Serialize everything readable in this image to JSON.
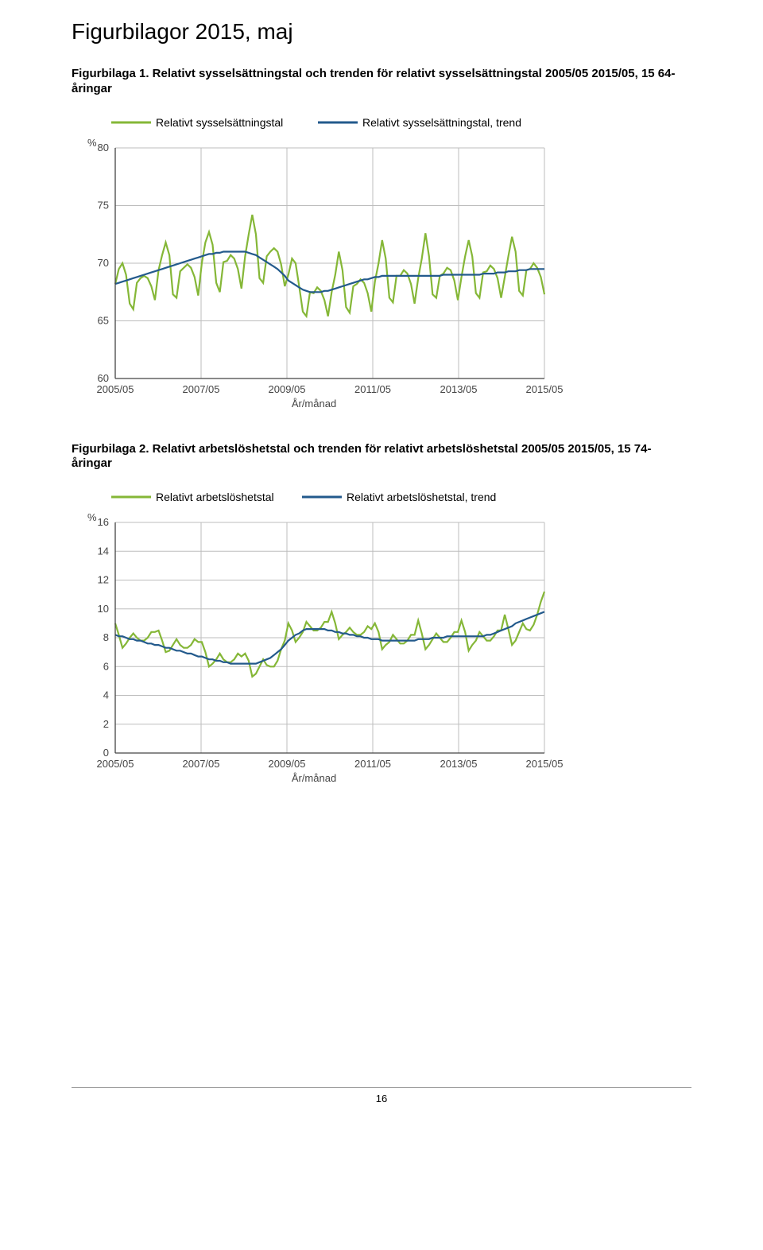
{
  "page_title": "Figurbilagor 2015, maj",
  "page_number": "16",
  "colors": {
    "green": "#85b737",
    "blue": "#235a8c",
    "grid": "#bdbdbd",
    "axis": "#444444"
  },
  "chart1": {
    "caption": "Figurbilaga 1. Relativt sysselsättningstal och trenden för relativt sysselsättningstal 2005/05 2015/05, 15 64-åringar",
    "legend_a": "Relativt sysselsättningstal",
    "legend_b": "Relativt sysselsättningstal, trend",
    "y_label": "%",
    "x_label": "År/månad",
    "y_ticks": [
      60,
      65,
      70,
      75,
      80
    ],
    "x_ticks": [
      "2005/05",
      "2007/05",
      "2009/05",
      "2011/05",
      "2013/05",
      "2015/05"
    ],
    "ylim": [
      60,
      80
    ],
    "xlim": [
      0,
      120
    ],
    "series_a": {
      "color_key": "green",
      "y": [
        68.2,
        69.5,
        70.0,
        69.0,
        66.5,
        66.0,
        68.3,
        68.7,
        68.9,
        68.7,
        68.0,
        66.8,
        69.4,
        70.7,
        71.8,
        70.7,
        67.3,
        67.0,
        69.3,
        69.6,
        69.9,
        69.6,
        68.8,
        67.2,
        70.0,
        71.8,
        72.7,
        71.6,
        68.3,
        67.5,
        70.1,
        70.2,
        70.7,
        70.4,
        69.5,
        67.8,
        70.6,
        72.5,
        74.2,
        72.5,
        68.7,
        68.3,
        70.6,
        71.0,
        71.3,
        71.0,
        69.9,
        68.0,
        69.0,
        70.4,
        70.0,
        68.0,
        65.8,
        65.4,
        67.5,
        67.4,
        67.9,
        67.6,
        66.8,
        65.4,
        67.5,
        69.0,
        71.0,
        69.4,
        66.2,
        65.7,
        68.0,
        68.2,
        68.6,
        68.3,
        67.4,
        65.8,
        68.4,
        70.0,
        72.0,
        70.4,
        67.0,
        66.6,
        68.9,
        68.9,
        69.4,
        69.1,
        68.2,
        66.5,
        68.7,
        70.4,
        72.6,
        70.6,
        67.3,
        67.0,
        68.9,
        69.1,
        69.6,
        69.4,
        68.5,
        66.8,
        68.8,
        70.6,
        72.0,
        70.6,
        67.4,
        67.0,
        69.2,
        69.3,
        69.8,
        69.5,
        68.7,
        67.0,
        68.8,
        70.6,
        72.3,
        71.0,
        67.6,
        67.2,
        69.4,
        69.5,
        70.0,
        69.6,
        68.8,
        67.3
      ]
    },
    "series_b": {
      "color_key": "blue",
      "y": [
        68.2,
        68.3,
        68.4,
        68.5,
        68.6,
        68.7,
        68.8,
        68.9,
        69.0,
        69.1,
        69.2,
        69.3,
        69.4,
        69.5,
        69.6,
        69.7,
        69.8,
        69.9,
        70.0,
        70.1,
        70.2,
        70.3,
        70.4,
        70.5,
        70.6,
        70.7,
        70.8,
        70.8,
        70.9,
        70.9,
        71.0,
        71.0,
        71.0,
        71.0,
        71.0,
        71.0,
        71.0,
        70.9,
        70.8,
        70.7,
        70.5,
        70.3,
        70.1,
        69.9,
        69.7,
        69.5,
        69.2,
        68.9,
        68.5,
        68.3,
        68.1,
        67.9,
        67.7,
        67.6,
        67.5,
        67.5,
        67.5,
        67.5,
        67.6,
        67.6,
        67.7,
        67.8,
        67.9,
        68.0,
        68.1,
        68.2,
        68.3,
        68.4,
        68.5,
        68.6,
        68.6,
        68.7,
        68.8,
        68.8,
        68.9,
        68.9,
        68.9,
        68.9,
        68.9,
        68.9,
        68.9,
        68.9,
        68.9,
        68.9,
        68.9,
        68.9,
        68.9,
        68.9,
        68.9,
        68.9,
        68.9,
        69.0,
        69.0,
        69.0,
        69.0,
        69.0,
        69.0,
        69.0,
        69.0,
        69.0,
        69.0,
        69.0,
        69.1,
        69.1,
        69.1,
        69.1,
        69.2,
        69.2,
        69.2,
        69.3,
        69.3,
        69.3,
        69.4,
        69.4,
        69.4,
        69.5,
        69.5,
        69.5,
        69.5,
        69.5
      ]
    }
  },
  "chart2": {
    "caption": "Figurbilaga 2. Relativt arbetslöshetstal och trenden för relativt arbetslöshetstal 2005/05 2015/05, 15 74-åringar",
    "legend_a": "Relativt arbetslöshetstal",
    "legend_b": "Relativt arbetslöshetstal, trend",
    "y_label": "%",
    "x_label": "År/månad",
    "y_ticks": [
      0,
      2,
      4,
      6,
      8,
      10,
      12,
      14,
      16
    ],
    "x_ticks": [
      "2005/05",
      "2007/05",
      "2009/05",
      "2011/05",
      "2013/05",
      "2015/05"
    ],
    "ylim": [
      0,
      16
    ],
    "xlim": [
      0,
      120
    ],
    "series_a": {
      "color_key": "green",
      "y": [
        9.0,
        8.2,
        7.3,
        7.6,
        8.0,
        8.3,
        8.0,
        7.8,
        7.8,
        8.0,
        8.4,
        8.4,
        8.5,
        7.8,
        7.0,
        7.1,
        7.5,
        7.9,
        7.5,
        7.3,
        7.3,
        7.5,
        7.9,
        7.7,
        7.7,
        7.0,
        6.0,
        6.2,
        6.5,
        6.9,
        6.5,
        6.3,
        6.3,
        6.5,
        6.9,
        6.7,
        6.9,
        6.4,
        5.3,
        5.5,
        6.0,
        6.5,
        6.1,
        6.0,
        6.0,
        6.4,
        7.2,
        7.8,
        9.0,
        8.5,
        7.7,
        8.0,
        8.4,
        9.1,
        8.8,
        8.5,
        8.5,
        8.7,
        9.1,
        9.1,
        9.8,
        9.0,
        7.9,
        8.2,
        8.4,
        8.7,
        8.4,
        8.2,
        8.2,
        8.4,
        8.8,
        8.6,
        9.0,
        8.4,
        7.2,
        7.5,
        7.7,
        8.2,
        7.9,
        7.6,
        7.6,
        7.8,
        8.2,
        8.2,
        9.2,
        8.3,
        7.2,
        7.5,
        7.9,
        8.3,
        8.0,
        7.7,
        7.7,
        8.0,
        8.4,
        8.4,
        9.2,
        8.4,
        7.1,
        7.5,
        7.8,
        8.4,
        8.1,
        7.8,
        7.8,
        8.1,
        8.5,
        8.5,
        9.6,
        8.6,
        7.5,
        7.8,
        8.4,
        9.0,
        8.6,
        8.5,
        8.9,
        9.6,
        10.5,
        11.2
      ]
    },
    "series_b": {
      "color_key": "blue",
      "y": [
        8.2,
        8.1,
        8.1,
        8.0,
        7.9,
        7.9,
        7.8,
        7.8,
        7.7,
        7.6,
        7.6,
        7.5,
        7.5,
        7.4,
        7.3,
        7.3,
        7.2,
        7.1,
        7.1,
        7.0,
        6.9,
        6.9,
        6.8,
        6.7,
        6.7,
        6.6,
        6.5,
        6.5,
        6.4,
        6.4,
        6.3,
        6.3,
        6.2,
        6.2,
        6.2,
        6.2,
        6.2,
        6.2,
        6.2,
        6.2,
        6.3,
        6.4,
        6.5,
        6.6,
        6.8,
        7.0,
        7.2,
        7.5,
        7.8,
        8.0,
        8.2,
        8.3,
        8.5,
        8.6,
        8.6,
        8.6,
        8.6,
        8.6,
        8.6,
        8.5,
        8.5,
        8.4,
        8.4,
        8.3,
        8.3,
        8.2,
        8.2,
        8.1,
        8.1,
        8.0,
        8.0,
        7.9,
        7.9,
        7.9,
        7.8,
        7.8,
        7.8,
        7.8,
        7.8,
        7.8,
        7.8,
        7.8,
        7.8,
        7.8,
        7.9,
        7.9,
        7.9,
        7.9,
        8.0,
        8.0,
        8.0,
        8.0,
        8.1,
        8.1,
        8.1,
        8.1,
        8.1,
        8.1,
        8.1,
        8.1,
        8.1,
        8.1,
        8.1,
        8.2,
        8.2,
        8.3,
        8.4,
        8.5,
        8.6,
        8.7,
        8.8,
        9.0,
        9.1,
        9.2,
        9.3,
        9.4,
        9.5,
        9.6,
        9.7,
        9.8
      ]
    }
  }
}
